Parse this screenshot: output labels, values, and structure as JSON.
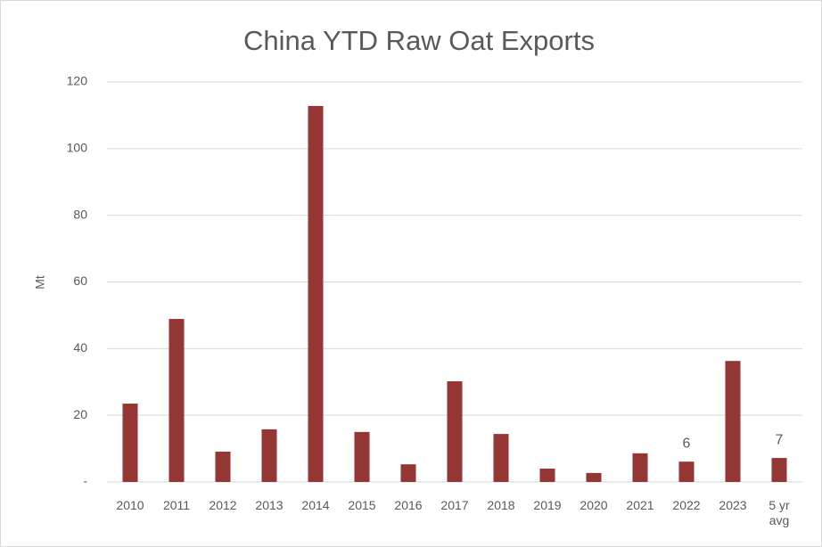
{
  "chart_data": {
    "type": "bar",
    "title": "China YTD Raw Oat Exports",
    "y_label": "Mt",
    "categories": [
      "2010",
      "2011",
      "2012",
      "2013",
      "2014",
      "2015",
      "2016",
      "2017",
      "2018",
      "2019",
      "2020",
      "2021",
      "2022",
      "2023",
      "5 yr avg"
    ],
    "values": [
      23.5,
      48.9,
      9.1,
      15.8,
      112.8,
      15.0,
      5.3,
      30.2,
      14.4,
      4.0,
      2.7,
      8.6,
      6.1,
      36.3,
      7.2
    ],
    "value_labels": [
      null,
      null,
      null,
      null,
      null,
      null,
      null,
      null,
      null,
      null,
      null,
      null,
      "6",
      null,
      "7"
    ],
    "color": "#943634",
    "ylim": [
      0,
      120
    ],
    "yticks": [
      {
        "value": 0,
        "label": "-"
      },
      20,
      40,
      60,
      80,
      100,
      120
    ],
    "grid": true
  }
}
